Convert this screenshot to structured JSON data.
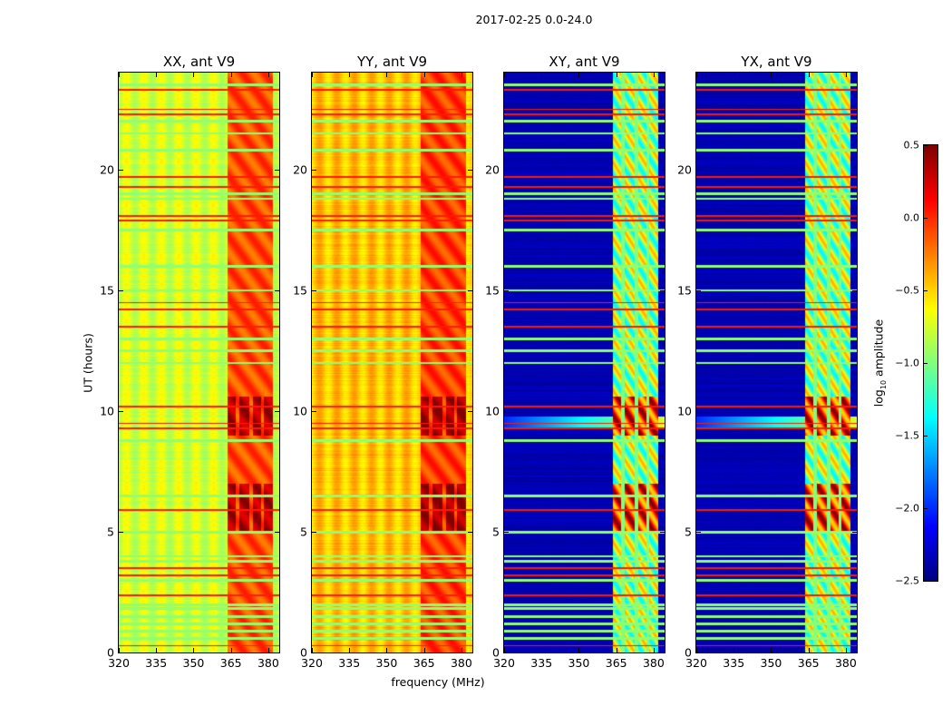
{
  "chart_data": {
    "type": "heatmap",
    "suptitle": "2017-02-25 0.0-24.0",
    "xlabel": "frequency (MHz)",
    "ylabel": "UT (hours)",
    "xlim": [
      320,
      384.4
    ],
    "ylim": [
      0,
      24
    ],
    "xticks": [
      "320",
      "335",
      "350",
      "365",
      "380"
    ],
    "xtick_values": [
      320,
      335,
      350,
      365,
      380
    ],
    "yticks": [
      "0",
      "5",
      "10",
      "15",
      "20"
    ],
    "ytick_values": [
      0,
      5,
      10,
      15,
      20
    ],
    "colormap": "jet",
    "colorbar": {
      "label_prefix": "log",
      "label_sub": "10",
      "label_suffix": " amplitude",
      "range": [
        -2.5,
        0.5
      ],
      "ticks": [
        "0.5",
        "0.0",
        "−0.5",
        "−1.0",
        "−1.5",
        "−2.0",
        "−2.5"
      ],
      "tick_values": [
        0.5,
        0.0,
        -0.5,
        -1.0,
        -1.5,
        -2.0,
        -2.5
      ]
    },
    "panels": [
      {
        "title": "XX, ant V9",
        "base_level": -0.75,
        "band_level": -0.1
      },
      {
        "title": "YY, ant V9",
        "base_level": -0.45,
        "band_level": -0.05
      },
      {
        "title": "XY, ant V9",
        "base_level": -2.35,
        "band_level": -0.9
      },
      {
        "title": "YX, ant V9",
        "base_level": -2.35,
        "band_level": -0.9
      }
    ],
    "rfi_band_mhz": [
      363.4,
      381.5
    ],
    "rfi_subband_gaps_mhz": [
      367.5,
      372.9,
      377.6
    ],
    "strong_rfi_hours": [
      [
        5.0,
        7.0
      ],
      [
        9.0,
        10.6
      ]
    ],
    "bright_line_hours": [
      0.3,
      2.4,
      3.2,
      3.5,
      5.9,
      9.3,
      9.5,
      10.2,
      13.5,
      14.2,
      14.5,
      17.9,
      18.1,
      19.3,
      19.7,
      22.3,
      22.5,
      23.3
    ],
    "flagged_line_hours": [
      0.6,
      0.9,
      1.2,
      1.5,
      1.85,
      2.0,
      3.0,
      3.8,
      4.0,
      5.0,
      6.5,
      8.8,
      12.0,
      12.5,
      13.0,
      15.0,
      16.0,
      17.5,
      18.8,
      19.0,
      20.8,
      21.5,
      22.0,
      23.5
    ]
  }
}
